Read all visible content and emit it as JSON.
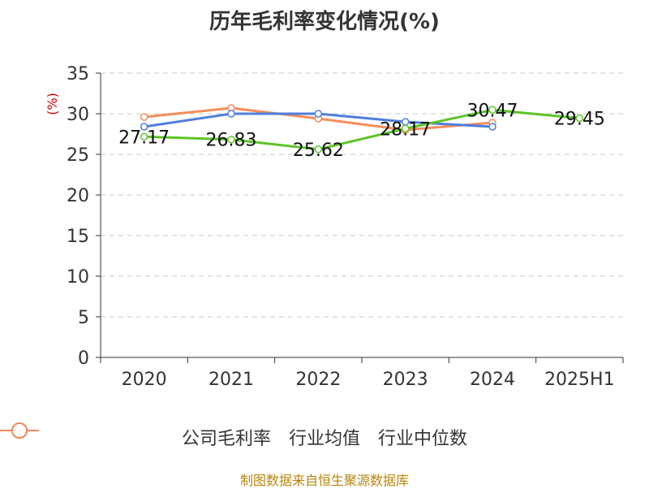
{
  "title": "历年毛利率变化情况(%)",
  "unit_label": "(%)",
  "source": "制图数据来自恒生聚源数据库",
  "chart_data": {
    "type": "line",
    "categories": [
      "2020",
      "2021",
      "2022",
      "2023",
      "2024",
      "2025H1"
    ],
    "ylim": [
      0,
      35
    ],
    "yticks": [
      0,
      5,
      10,
      15,
      20,
      25,
      30,
      35
    ],
    "grid": true,
    "legend_position": "bottom",
    "series": [
      {
        "name": "公司毛利率",
        "color": "#5cc524",
        "values": [
          27.17,
          26.83,
          25.62,
          28.17,
          30.47,
          29.45
        ],
        "labels": [
          "27.17",
          "26.83",
          "25.62",
          "28.17",
          "30.47",
          "29.45"
        ]
      },
      {
        "name": "行业均值",
        "color": "#4f7fdc",
        "values": [
          28.4,
          30.0,
          30.0,
          29.0,
          28.4,
          null
        ]
      },
      {
        "name": "行业中位数",
        "color": "#f58d5b",
        "values": [
          29.6,
          30.7,
          29.4,
          28.0,
          28.9,
          null
        ]
      }
    ]
  }
}
